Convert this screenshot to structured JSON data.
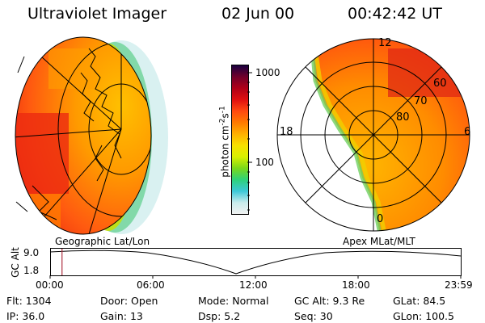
{
  "header": {
    "instrument": "Ultraviolet Imager",
    "date": "02 Jun 00",
    "time": "00:42:42  UT"
  },
  "colorbar": {
    "label_text": "photon cm",
    "label_exp1": "-2",
    "label_s": "s",
    "label_exp2": "-1",
    "tick_high": "1000",
    "tick_mid": "100",
    "colors": [
      "#f2f2f2",
      "#c8ecec",
      "#3cc8d8",
      "#2ed27a",
      "#7ad81a",
      "#d8f000",
      "#f8e000",
      "#ffb000",
      "#ff7a00",
      "#ff4a10",
      "#e01010",
      "#b00018",
      "#70002a",
      "#1a0040"
    ]
  },
  "polar_plot": {
    "lat_labels": [
      "80",
      "70",
      "60"
    ],
    "mlt_labels": [
      "12",
      "18",
      "6",
      "0"
    ]
  },
  "projection_labels": {
    "left": "Geographic Lat/Lon",
    "right": "Apex MLat/MLT"
  },
  "altitude_plot": {
    "ylabel": "GC Alt",
    "y_ticks": [
      "9.0",
      "1.8"
    ],
    "x_ticks": [
      "00:00",
      "06:00",
      "12:00",
      "18:00",
      "23:59"
    ],
    "marker_color": "#b03040",
    "marker_fraction": 0.029
  },
  "info": {
    "row1": [
      {
        "label": "Flt:",
        "value": "1304"
      },
      {
        "label": "Door:",
        "value": "Open"
      },
      {
        "label": "Mode:",
        "value": "Normal"
      },
      {
        "label": "GC Alt:",
        "value": "9.3 Re"
      },
      {
        "label": "GLat:",
        "value": "84.5"
      }
    ],
    "row2": [
      {
        "label": "IP:",
        "value": "36.0"
      },
      {
        "label": "Gain:",
        "value": "13"
      },
      {
        "label": "Dsp:",
        "value": "5.2"
      },
      {
        "label": "Seq:",
        "value": "30"
      },
      {
        "label": "GLon:",
        "value": "100.5"
      }
    ]
  }
}
